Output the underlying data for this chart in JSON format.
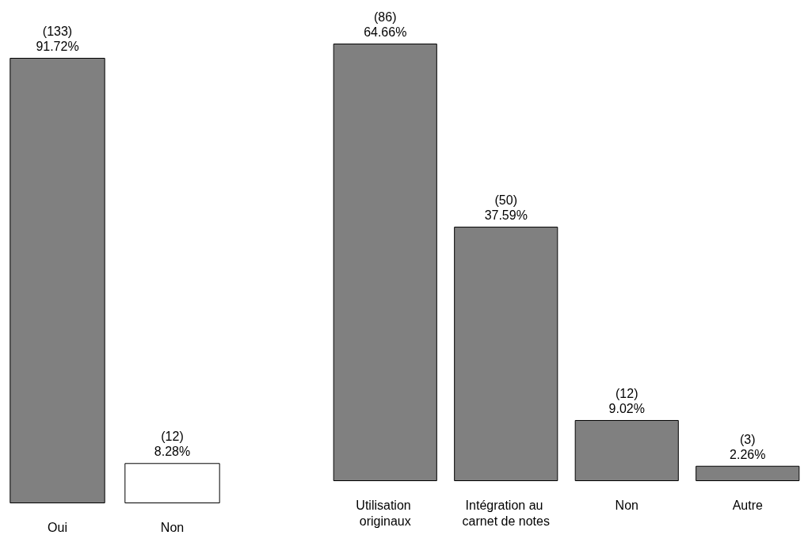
{
  "chart_data": [
    {
      "type": "bar",
      "categories": [
        "Oui",
        "Non"
      ],
      "values": [
        133,
        12
      ],
      "colors": [
        "#808080",
        "#ffffff"
      ],
      "value_labels": [
        "(133)\n91.72%",
        "(12)\n8.28%"
      ]
    },
    {
      "type": "bar",
      "categories": [
        "Utilisation originaux",
        "Intégration au carnet de notes",
        "Non",
        "Autre"
      ],
      "values": [
        86,
        50,
        12,
        3
      ],
      "colors": [
        "#808080",
        "#808080",
        "#808080",
        "#808080"
      ],
      "value_labels": [
        "(86)\n64.66%",
        "(50)\n37.59%",
        "(12)\n9.02%",
        "(3)\n2.26%"
      ]
    }
  ]
}
